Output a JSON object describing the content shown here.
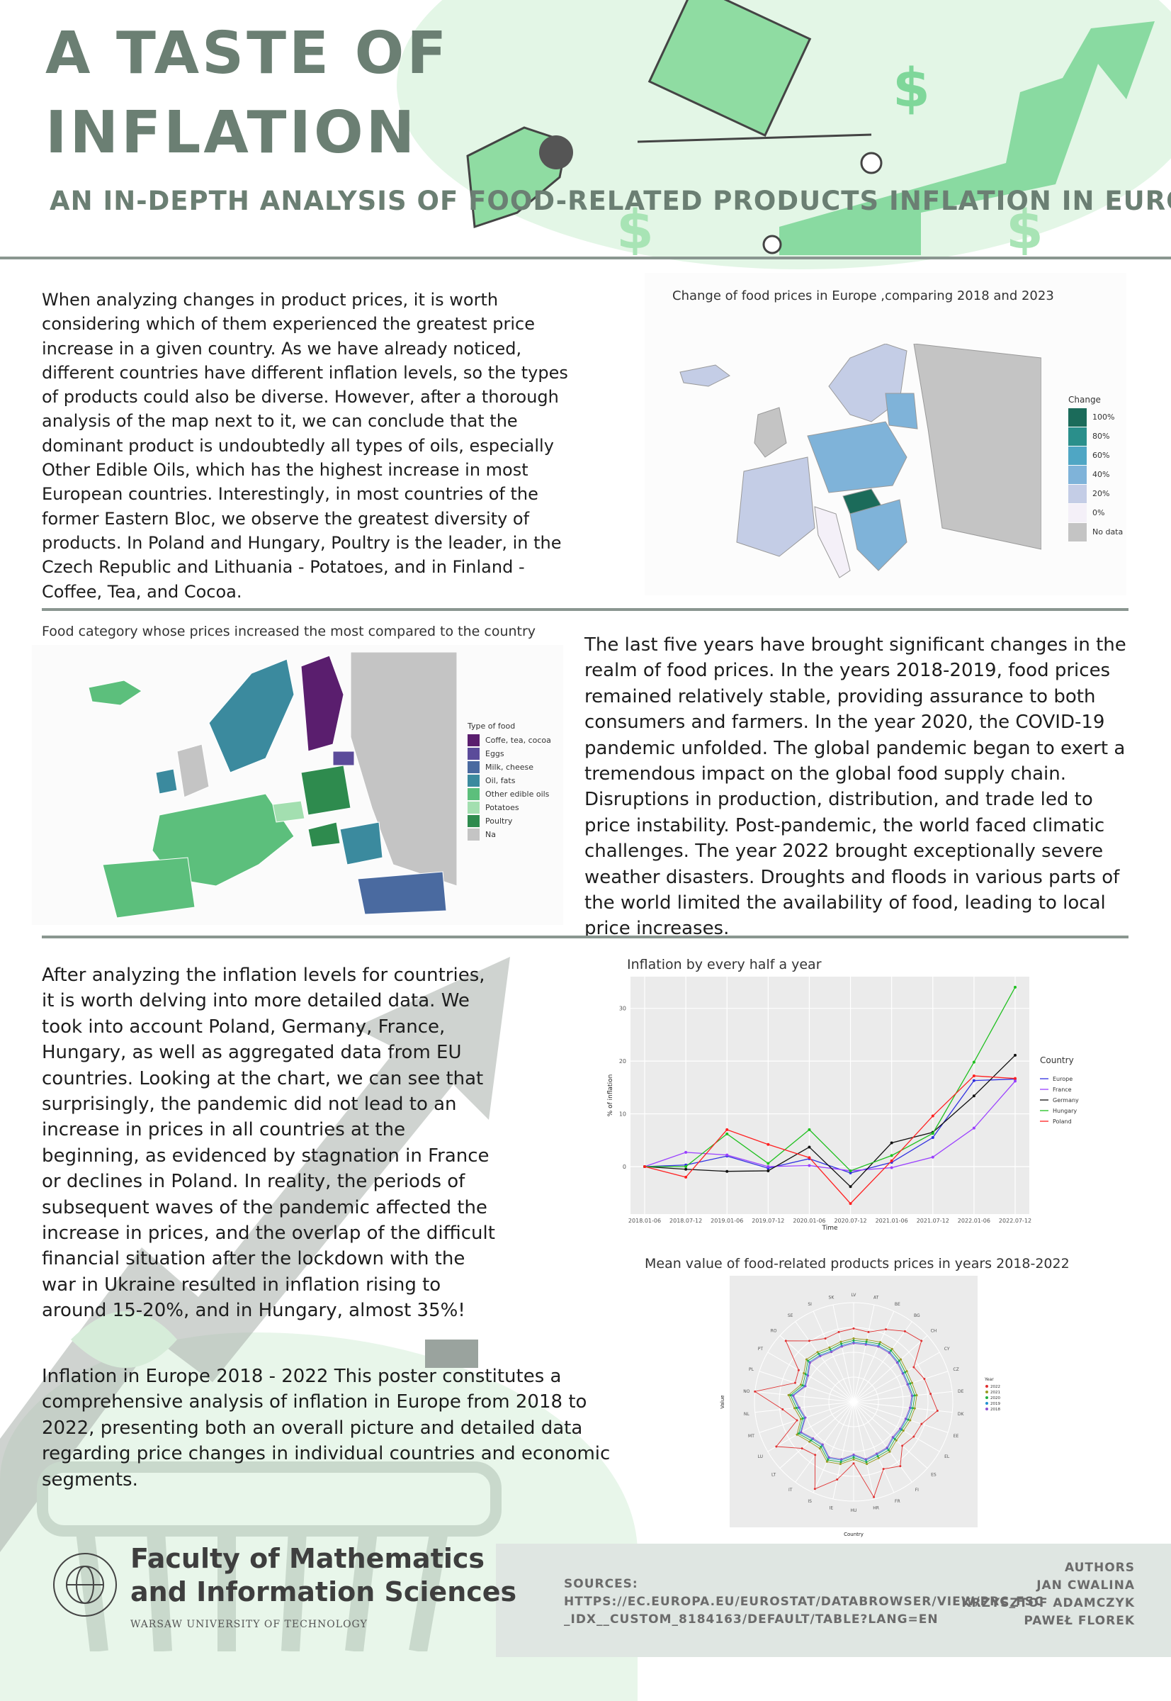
{
  "header": {
    "title_line1": "A TASTE OF",
    "title_line2": "INFLATION",
    "subtitle": "AN IN-DEPTH ANALYSIS OF FOOD-RELATED PRODUCTS INFLATION  IN EUROPE"
  },
  "section1": {
    "text": "When analyzing changes in product prices, it is worth considering which of them experienced the greatest price increase in a given country. As we have already noticed, different countries have different inflation levels, so the types of products could also be diverse. However, after a thorough analysis of the map next to it, we can conclude that the dominant product is undoubtedly all types of oils, especially Other Edible Oils, which has the highest increase in most European countries. Interestingly, in most countries of the former Eastern Bloc, we observe the greatest diversity of products. In Poland and Hungary, Poultry is the leader, in the Czech Republic and Lithuania - Potatoes, and in Finland - Coffee, Tea, and Cocoa.",
    "map_title": "Change of food prices in Europe ,comparing 2018 and 2023",
    "legend_title": "Change",
    "legend": [
      {
        "label": "100%",
        "color": "#1b6b5a"
      },
      {
        "label": "80%",
        "color": "#2a8f8b"
      },
      {
        "label": "60%",
        "color": "#4fa6c4"
      },
      {
        "label": "40%",
        "color": "#7fb3d9"
      },
      {
        "label": "20%",
        "color": "#c4cde6"
      },
      {
        "label": "0%",
        "color": "#f4f0f8"
      },
      {
        "label": "No data",
        "color": "#c4c4c4"
      }
    ]
  },
  "section2": {
    "map_title": "Food category whose prices increased the most compared to the country",
    "legend_title": "Type of food",
    "legend": [
      {
        "label": "Coffe, tea, cocoa",
        "color": "#5a1e6e"
      },
      {
        "label": "Eggs",
        "color": "#5b4b9a"
      },
      {
        "label": "Milk, cheese",
        "color": "#4a6aa0"
      },
      {
        "label": "Oil, fats",
        "color": "#3b8a9e"
      },
      {
        "label": "Other edible oils",
        "color": "#5cbf7c"
      },
      {
        "label": "Potatoes",
        "color": "#a3dfb0"
      },
      {
        "label": "Poultry",
        "color": "#2e8b4e"
      },
      {
        "label": "Na",
        "color": "#c4c4c4"
      }
    ],
    "text": "The last five years have brought significant changes in the realm of food prices. In the years 2018-2019, food prices remained relatively stable, providing assurance to both consumers and farmers. In the year 2020, the COVID-19 pandemic unfolded. The global pandemic began to exert a tremendous impact on the global food supply chain. Disruptions in production, distribution, and trade led to price instability. Post-pandemic, the world faced climatic challenges. The year 2022 brought exceptionally severe weather disasters. Droughts and floods in various parts of the world limited the availability of food, leading to local price increases."
  },
  "section3": {
    "text1": "After analyzing the inflation levels for countries, it is worth delving into more detailed data. We took into account Poland, Germany, France, Hungary, as well as aggregated data from EU countries. Looking at the chart, we can see that surprisingly, the pandemic did not lead to an increase in prices in all countries at the beginning, as evidenced by stagnation in France or declines in Poland. In reality, the periods of subsequent waves of the pandemic affected the increase in prices, and the overlap of the difficult financial situation after the lockdown with the war in Ukraine resulted in inflation rising to around 15-20%, and in Hungary, almost 35%!",
    "text2": "Inflation in Europe 2018 - 2022 This poster constitutes a comprehensive analysis of inflation in Europe from 2018 to 2022, presenting both an overall picture and detailed data regarding price changes in individual countries and economic segments."
  },
  "chart_data": [
    {
      "type": "line",
      "title": "Inflation by every half a year",
      "xlabel": "Time",
      "ylabel": "% of inflation",
      "x": [
        "2018.01-06",
        "2018.07-12",
        "2019.01-06",
        "2019.07-12",
        "2020.01-06",
        "2020.07-12",
        "2021.01-06",
        "2021.07-12",
        "2022.01-06",
        "2022.07-12"
      ],
      "yticks": [
        0,
        10,
        20,
        30
      ],
      "ylim": [
        -9,
        36
      ],
      "legend_title": "Country",
      "legend_position": "right",
      "series": [
        {
          "name": "Europe",
          "color": "#3030e0",
          "values": [
            0,
            0.3,
            2.0,
            -0.3,
            1.5,
            -1.2,
            0.8,
            5.5,
            16.3,
            16.6
          ]
        },
        {
          "name": "France",
          "color": "#9a40ff",
          "values": [
            0,
            2.7,
            2.2,
            0.0,
            0.2,
            -0.8,
            -0.2,
            1.8,
            7.3,
            16.2
          ]
        },
        {
          "name": "Germany",
          "color": "#111111",
          "values": [
            0,
            -0.5,
            -0.9,
            -0.8,
            3.7,
            -3.8,
            4.5,
            6.5,
            13.4,
            21.1
          ]
        },
        {
          "name": "Hungary",
          "color": "#20c020",
          "values": [
            0,
            0.0,
            6.2,
            0.6,
            7.0,
            -0.8,
            2.1,
            6.3,
            19.8,
            34.0
          ]
        },
        {
          "name": "Poland",
          "color": "#ff2020",
          "values": [
            0,
            -2.0,
            7.0,
            4.2,
            1.7,
            -7.0,
            1.1,
            9.6,
            17.2,
            16.7
          ]
        }
      ]
    },
    {
      "type": "radar",
      "title": "Mean value of food-related products prices in years 2018-2022",
      "xlabel": "Country",
      "ylabel": "Value",
      "legend_title": "Year",
      "legend_position": "right",
      "categories": [
        "LV",
        "AT",
        "BE",
        "BG",
        "CH",
        "CY",
        "CZ",
        "DE",
        "DK",
        "EE",
        "EL",
        "ES",
        "FI",
        "FR",
        "HR",
        "HU",
        "IE",
        "IS",
        "IT",
        "LT",
        "LU",
        "MT",
        "NL",
        "NO",
        "PL",
        "PT",
        "RO",
        "SE",
        "SI",
        "SK"
      ],
      "series": [
        {
          "name": "2022",
          "color": "#e03030",
          "values": [
            74,
            72,
            80,
            88,
            92,
            70,
            75,
            78,
            85,
            72,
            70,
            66,
            80,
            74,
            98,
            62,
            80,
            96,
            66,
            70,
            90,
            60,
            72,
            100,
            62,
            64,
            92,
            76,
            70,
            72
          ]
        },
        {
          "name": "2021",
          "color": "#9a9a20",
          "values": [
            64,
            64,
            66,
            66,
            64,
            62,
            62,
            64,
            62,
            60,
            58,
            58,
            62,
            62,
            64,
            58,
            64,
            66,
            58,
            60,
            66,
            56,
            60,
            66,
            56,
            58,
            64,
            62,
            60,
            62
          ]
        },
        {
          "name": "2020",
          "color": "#20b040",
          "values": [
            62,
            62,
            64,
            64,
            62,
            60,
            60,
            62,
            60,
            58,
            56,
            56,
            60,
            60,
            62,
            56,
            62,
            64,
            56,
            58,
            64,
            54,
            58,
            64,
            54,
            56,
            62,
            60,
            58,
            60
          ]
        },
        {
          "name": "2019",
          "color": "#2090d0",
          "values": [
            60,
            60,
            62,
            62,
            60,
            58,
            58,
            60,
            58,
            56,
            55,
            54,
            58,
            58,
            60,
            54,
            60,
            62,
            54,
            56,
            62,
            52,
            56,
            62,
            52,
            54,
            60,
            58,
            56,
            58
          ]
        },
        {
          "name": "2018",
          "color": "#9050d0",
          "values": [
            59,
            59,
            61,
            61,
            59,
            57,
            57,
            59,
            57,
            55,
            54,
            53,
            57,
            57,
            59,
            53,
            59,
            61,
            53,
            55,
            61,
            51,
            55,
            61,
            51,
            53,
            59,
            57,
            55,
            57
          ]
        }
      ]
    }
  ],
  "footer": {
    "faculty_line1": "Faculty of Mathematics",
    "faculty_line2": "and Information Sciences",
    "university": "WARSAW UNIVERSITY OF TECHNOLOGY",
    "sources_label": "SOURCES:",
    "sources_line1": "HTTPS://EC.EUROPA.EU/EUROSTAT/DATABROWSER/VIEW/PRC_FSC",
    "sources_line2": "_IDX__CUSTOM_8184163/DEFAULT/TABLE?LANG=EN",
    "authors_label": "AUTHORS",
    "authors": [
      "JAN CWALINA",
      "KRZYSZTOF ADAMCZYK",
      "PAWEŁ  FLOREK"
    ]
  }
}
